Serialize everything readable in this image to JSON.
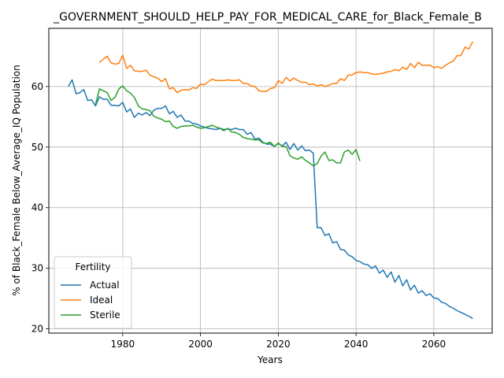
{
  "chart_data": {
    "type": "line",
    "title": "_GOVERNMENT_SHOULD_HELP_PAY_FOR_MEDICAL_CARE_for_Black_Female_B",
    "xlabel": "Years",
    "ylabel": "% of Black_Female Below_Average_IQ Population",
    "xlim": [
      1961,
      2075
    ],
    "ylim": [
      19.3,
      69.6
    ],
    "xticks": [
      1980,
      2000,
      2020,
      2040,
      2060
    ],
    "yticks": [
      20,
      30,
      40,
      50,
      60
    ],
    "grid": true,
    "legend": {
      "title": "Fertility",
      "placement": "lower-left"
    },
    "series": [
      {
        "name": "Actual",
        "color": "#1f77b4",
        "x": [
          1966,
          1967,
          1968,
          1969,
          1970,
          1971,
          1972,
          1973,
          1974,
          1975,
          1976,
          1977,
          1978,
          1979,
          1980,
          1981,
          1982,
          1983,
          1984,
          1985,
          1986,
          1987,
          1988,
          1989,
          1990,
          1991,
          1992,
          1993,
          1994,
          1995,
          1996,
          1997,
          1998,
          1999,
          2000,
          2001,
          2002,
          2003,
          2004,
          2005,
          2006,
          2007,
          2008,
          2009,
          2010,
          2011,
          2012,
          2013,
          2014,
          2015,
          2016,
          2017,
          2018,
          2019,
          2020,
          2021,
          2022,
          2023,
          2024,
          2025,
          2026,
          2027,
          2028,
          2029,
          2030,
          2031,
          2032,
          2033,
          2034,
          2035,
          2036,
          2037,
          2038,
          2039,
          2040,
          2041,
          2042,
          2043,
          2044,
          2045,
          2046,
          2047,
          2048,
          2049,
          2050,
          2051,
          2052,
          2053,
          2054,
          2055,
          2056,
          2057,
          2058,
          2059,
          2060,
          2061,
          2062,
          2063,
          2064,
          2065,
          2066,
          2067,
          2068,
          2069,
          2070
        ],
        "values": [
          60.0,
          61.1,
          58.8,
          59.0,
          59.5,
          57.7,
          57.8,
          56.8,
          58.3,
          57.9,
          57.9,
          56.9,
          56.9,
          56.8,
          57.4,
          55.8,
          56.3,
          54.9,
          55.6,
          55.3,
          55.7,
          55.2,
          56.1,
          56.4,
          56.4,
          56.8,
          55.5,
          55.9,
          54.9,
          55.3,
          54.3,
          54.3,
          53.9,
          53.8,
          53.5,
          53.3,
          53.1,
          53.0,
          52.9,
          53.1,
          52.9,
          53.0,
          52.9,
          53.1,
          52.9,
          52.9,
          52.1,
          52.4,
          51.3,
          51.5,
          50.8,
          50.5,
          50.5,
          50.1,
          50.6,
          50.2,
          50.8,
          49.6,
          50.6,
          49.5,
          50.2,
          49.4,
          49.5,
          49.0,
          36.7,
          36.7,
          35.4,
          35.7,
          34.2,
          34.4,
          33.1,
          33.0,
          32.2,
          31.9,
          31.3,
          31.1,
          30.7,
          30.6,
          30.0,
          30.4,
          29.2,
          29.7,
          28.5,
          29.4,
          27.7,
          28.8,
          27.1,
          28.1,
          26.4,
          27.2,
          25.9,
          26.3,
          25.5,
          25.8,
          25.1,
          25.0,
          24.4,
          24.2,
          23.7,
          23.4,
          23.0,
          22.7,
          22.4,
          22.1,
          21.7
        ]
      },
      {
        "name": "Ideal",
        "color": "#ff7f0e",
        "x": [
          1974,
          1975,
          1976,
          1977,
          1978,
          1979,
          1980,
          1981,
          1982,
          1983,
          1984,
          1985,
          1986,
          1987,
          1988,
          1989,
          1990,
          1991,
          1992,
          1993,
          1994,
          1995,
          1996,
          1997,
          1998,
          1999,
          2000,
          2001,
          2002,
          2003,
          2004,
          2005,
          2006,
          2007,
          2008,
          2009,
          2010,
          2011,
          2012,
          2013,
          2014,
          2015,
          2016,
          2017,
          2018,
          2019,
          2020,
          2021,
          2022,
          2023,
          2024,
          2025,
          2026,
          2027,
          2028,
          2029,
          2030,
          2031,
          2032,
          2033,
          2034,
          2035,
          2036,
          2037,
          2038,
          2039,
          2040,
          2041,
          2042,
          2043,
          2044,
          2045,
          2046,
          2047,
          2048,
          2049,
          2050,
          2051,
          2052,
          2053,
          2054,
          2055,
          2056,
          2057,
          2058,
          2059,
          2060,
          2061,
          2062,
          2063,
          2064,
          2065,
          2066,
          2067,
          2068,
          2069,
          2070
        ],
        "values": [
          64.0,
          64.5,
          65.0,
          63.9,
          63.7,
          63.8,
          65.2,
          63.0,
          63.5,
          62.6,
          62.5,
          62.5,
          62.7,
          61.9,
          61.6,
          61.4,
          60.8,
          61.3,
          59.6,
          59.8,
          59.0,
          59.4,
          59.5,
          59.4,
          59.8,
          59.7,
          60.4,
          60.3,
          60.8,
          61.2,
          61.0,
          61.0,
          61.0,
          61.1,
          61.0,
          61.0,
          61.1,
          60.5,
          60.5,
          60.1,
          60.0,
          59.3,
          59.2,
          59.2,
          59.7,
          59.8,
          61.0,
          60.5,
          61.5,
          60.9,
          61.4,
          61.0,
          60.7,
          60.7,
          60.3,
          60.4,
          60.1,
          60.3,
          60.0,
          60.2,
          60.5,
          60.5,
          61.3,
          61.0,
          61.9,
          61.9,
          62.3,
          62.4,
          62.3,
          62.3,
          62.1,
          62.0,
          62.1,
          62.2,
          62.4,
          62.5,
          62.8,
          62.6,
          63.2,
          62.8,
          63.8,
          63.1,
          64.0,
          63.5,
          63.5,
          63.5,
          63.1,
          63.3,
          63.0,
          63.5,
          63.9,
          64.2,
          65.1,
          65.1,
          66.5,
          66.2,
          67.4
        ]
      },
      {
        "name": "Sterile",
        "color": "#2ca02c",
        "x": [
          1973,
          1974,
          1975,
          1976,
          1977,
          1978,
          1979,
          1980,
          1981,
          1982,
          1983,
          1984,
          1985,
          1986,
          1987,
          1988,
          1989,
          1990,
          1991,
          1992,
          1993,
          1994,
          1995,
          1996,
          1997,
          1998,
          1999,
          2000,
          2001,
          2002,
          2003,
          2004,
          2005,
          2006,
          2007,
          2008,
          2009,
          2010,
          2011,
          2012,
          2013,
          2014,
          2015,
          2016,
          2017,
          2018,
          2019,
          2020,
          2021,
          2022,
          2023,
          2024,
          2025,
          2026,
          2027,
          2028,
          2029,
          2030,
          2031,
          2032,
          2033,
          2034,
          2035,
          2036,
          2037,
          2038,
          2039,
          2040,
          2041
        ],
        "values": [
          57.0,
          59.6,
          59.3,
          59.0,
          57.7,
          58.2,
          59.6,
          60.1,
          59.3,
          58.9,
          58.2,
          56.8,
          56.3,
          56.2,
          56.0,
          55.1,
          54.8,
          54.6,
          54.2,
          54.3,
          53.4,
          53.1,
          53.4,
          53.5,
          53.5,
          53.6,
          53.3,
          53.1,
          53.2,
          53.4,
          53.6,
          53.3,
          53.1,
          52.7,
          53.1,
          52.5,
          52.4,
          52.1,
          51.6,
          51.4,
          51.3,
          51.2,
          51.2,
          50.7,
          50.6,
          50.8,
          50.1,
          50.7,
          50.1,
          50.1,
          48.6,
          48.2,
          48.0,
          48.4,
          47.8,
          47.4,
          46.9,
          47.3,
          48.5,
          49.2,
          47.8,
          47.9,
          47.4,
          47.4,
          49.2,
          49.5,
          48.8,
          49.6,
          47.7
        ]
      }
    ]
  }
}
